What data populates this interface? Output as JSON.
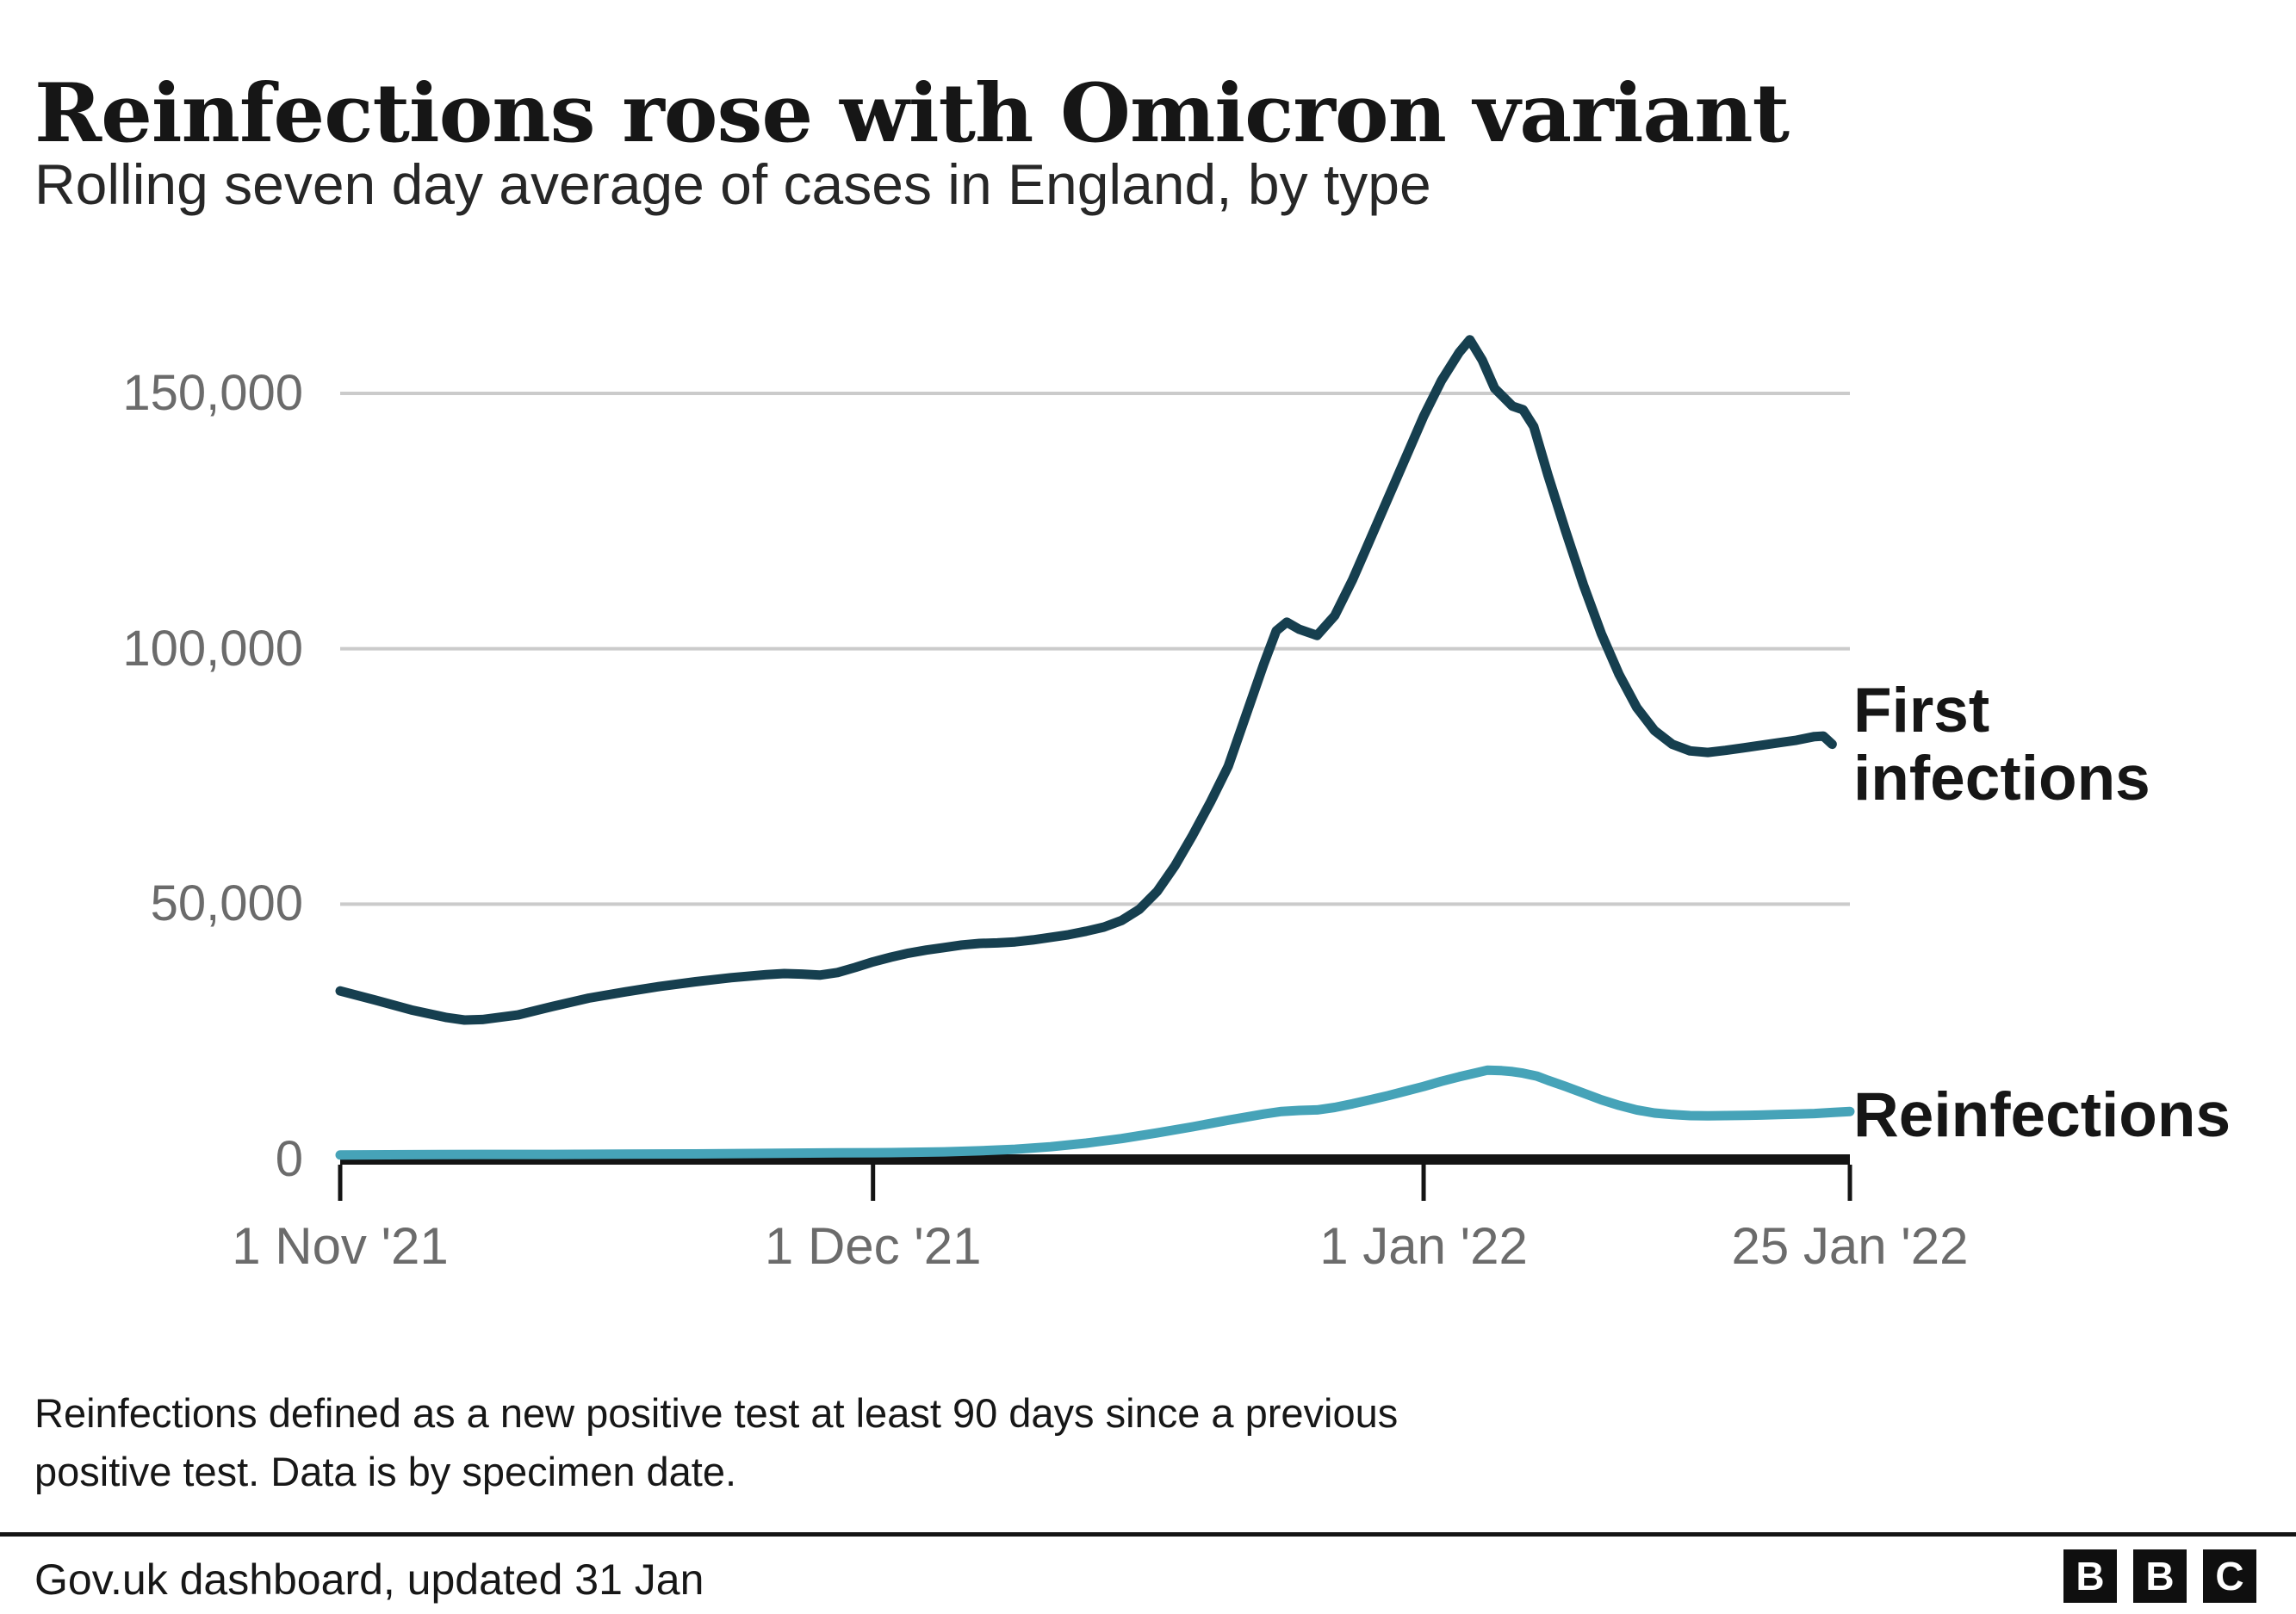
{
  "header": {
    "title": "Reinfections rose with Omicron variant",
    "subtitle": "Rolling seven day average of cases in England, by type"
  },
  "chart_data": {
    "type": "line",
    "title": "Reinfections rose with Omicron variant",
    "subtitle": "Rolling seven day average of cases in England, by type",
    "x_axis": {
      "unit": "days since 1 Nov 2021",
      "tick_days": [
        0,
        30,
        61,
        85
      ],
      "tick_labels": [
        "1 Nov '21",
        "1 Dec '21",
        "1 Jan '22",
        "25 Jan '22"
      ]
    },
    "y_axis": {
      "ticks": [
        0,
        50000,
        100000,
        150000
      ],
      "tick_labels": [
        "0",
        "50,000",
        "100,000",
        "150,000"
      ],
      "range": [
        0,
        165000
      ],
      "gridlines": "horizontal, light grey, at 50,000 intervals"
    },
    "legend_position": "labels at right end of each line",
    "series": [
      {
        "name": "First infections",
        "label_lines": [
          "First",
          "infections"
        ],
        "color": "#163f4f",
        "points": [
          [
            0,
            33000
          ],
          [
            2,
            31200
          ],
          [
            4,
            29300
          ],
          [
            6,
            27800
          ],
          [
            7,
            27300
          ],
          [
            8,
            27400
          ],
          [
            10,
            28300
          ],
          [
            12,
            30000
          ],
          [
            14,
            31600
          ],
          [
            16,
            32800
          ],
          [
            18,
            33900
          ],
          [
            20,
            34800
          ],
          [
            22,
            35600
          ],
          [
            24,
            36200
          ],
          [
            25,
            36400
          ],
          [
            26,
            36300
          ],
          [
            27,
            36100
          ],
          [
            28,
            36600
          ],
          [
            29,
            37600
          ],
          [
            30,
            38700
          ],
          [
            31,
            39600
          ],
          [
            32,
            40400
          ],
          [
            33,
            41000
          ],
          [
            34,
            41500
          ],
          [
            35,
            42000
          ],
          [
            36,
            42300
          ],
          [
            37,
            42400
          ],
          [
            38,
            42600
          ],
          [
            39,
            43000
          ],
          [
            40,
            43500
          ],
          [
            41,
            44000
          ],
          [
            42,
            44700
          ],
          [
            43,
            45500
          ],
          [
            44,
            46800
          ],
          [
            45,
            49000
          ],
          [
            46,
            52500
          ],
          [
            47,
            57500
          ],
          [
            48,
            63500
          ],
          [
            49,
            70000
          ],
          [
            50,
            77000
          ],
          [
            51,
            87000
          ],
          [
            52,
            97000
          ],
          [
            52.7,
            103500
          ],
          [
            53.3,
            105200
          ],
          [
            54,
            103800
          ],
          [
            55,
            102600
          ],
          [
            56,
            106500
          ],
          [
            57,
            113500
          ],
          [
            58,
            121500
          ],
          [
            59,
            129500
          ],
          [
            60,
            137500
          ],
          [
            61,
            145500
          ],
          [
            62,
            152500
          ],
          [
            63,
            158000
          ],
          [
            63.6,
            160500
          ],
          [
            64.3,
            156500
          ],
          [
            65,
            151000
          ],
          [
            66,
            147500
          ],
          [
            66.6,
            146800
          ],
          [
            67.2,
            143500
          ],
          [
            68,
            134000
          ],
          [
            69,
            123000
          ],
          [
            70,
            112500
          ],
          [
            71,
            103000
          ],
          [
            72,
            95000
          ],
          [
            73,
            88500
          ],
          [
            74,
            84000
          ],
          [
            75,
            81300
          ],
          [
            76,
            80000
          ],
          [
            77,
            79700
          ],
          [
            78,
            80100
          ],
          [
            79,
            80600
          ],
          [
            80,
            81100
          ],
          [
            81,
            81600
          ],
          [
            82,
            82100
          ],
          [
            83,
            82800
          ],
          [
            83.5,
            82900
          ],
          [
            84,
            81300
          ]
        ]
      },
      {
        "name": "Reinfections",
        "label_lines": [
          "Reinfections"
        ],
        "color": "#46a3b8",
        "points": [
          [
            0,
            900
          ],
          [
            4,
            950
          ],
          [
            8,
            1000
          ],
          [
            12,
            1000
          ],
          [
            16,
            1050
          ],
          [
            20,
            1100
          ],
          [
            24,
            1200
          ],
          [
            28,
            1300
          ],
          [
            31,
            1350
          ],
          [
            34,
            1500
          ],
          [
            36,
            1700
          ],
          [
            38,
            2000
          ],
          [
            40,
            2500
          ],
          [
            42,
            3200
          ],
          [
            44,
            4100
          ],
          [
            46,
            5200
          ],
          [
            48,
            6400
          ],
          [
            50,
            7700
          ],
          [
            52,
            8900
          ],
          [
            53,
            9400
          ],
          [
            54,
            9600
          ],
          [
            55,
            9700
          ],
          [
            56,
            10200
          ],
          [
            57,
            10900
          ],
          [
            58,
            11700
          ],
          [
            59,
            12500
          ],
          [
            60,
            13400
          ],
          [
            61,
            14300
          ],
          [
            62,
            15300
          ],
          [
            63,
            16200
          ],
          [
            64,
            17000
          ],
          [
            64.6,
            17500
          ],
          [
            65.4,
            17400
          ],
          [
            66,
            17200
          ],
          [
            66.6,
            16900
          ],
          [
            67.4,
            16300
          ],
          [
            68,
            15500
          ],
          [
            69,
            14300
          ],
          [
            70,
            13000
          ],
          [
            71,
            11700
          ],
          [
            72,
            10600
          ],
          [
            73,
            9700
          ],
          [
            74,
            9100
          ],
          [
            75,
            8800
          ],
          [
            76,
            8600
          ],
          [
            77,
            8550
          ],
          [
            78,
            8600
          ],
          [
            79,
            8650
          ],
          [
            80,
            8700
          ],
          [
            81,
            8800
          ],
          [
            82,
            8900
          ],
          [
            83,
            9000
          ],
          [
            84,
            9200
          ],
          [
            85,
            9400
          ]
        ]
      }
    ]
  },
  "footnote": {
    "line1": "Reinfections defined as a new positive test at least 90 days since a previous",
    "line2": "positive test. Data is by specimen date."
  },
  "source": {
    "text": "Gov.uk dashboard, updated 31 Jan"
  },
  "logo": {
    "letters": [
      "B",
      "B",
      "C"
    ]
  }
}
